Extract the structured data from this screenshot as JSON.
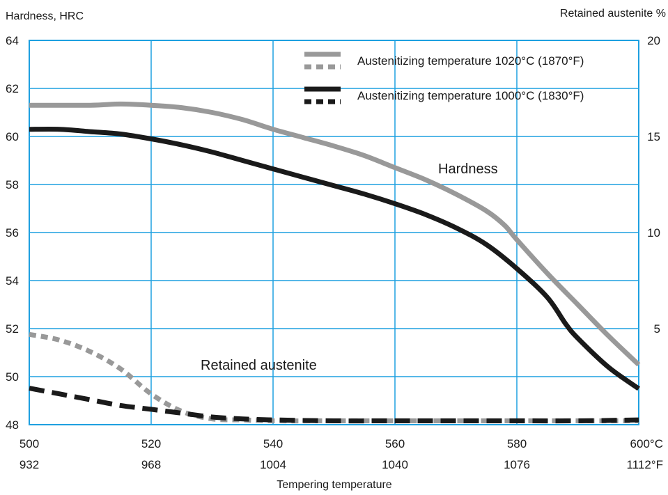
{
  "chart_data": {
    "type": "line",
    "y_left_label": "Hardness, HRC",
    "y_right_label": "Retained austenite %",
    "x_label": "Tempering temperature",
    "x_range": [
      500,
      600
    ],
    "y_left_range": [
      48,
      64
    ],
    "y_right_range": [
      0,
      20
    ],
    "x_ticks_c": [
      "500",
      "520",
      "540",
      "560",
      "580",
      "600°C"
    ],
    "x_ticks_f": [
      "932",
      "968",
      "1004",
      "1040",
      "1076",
      "1112°F"
    ],
    "x_tick_values": [
      500,
      520,
      540,
      560,
      580,
      600
    ],
    "y_left_ticks": [
      "48",
      "50",
      "52",
      "54",
      "56",
      "58",
      "60",
      "62",
      "64"
    ],
    "y_left_tick_values": [
      48,
      50,
      52,
      54,
      56,
      58,
      60,
      62,
      64
    ],
    "y_right_ticks": [
      "5",
      "10",
      "15",
      "20"
    ],
    "y_right_tick_values": [
      5,
      10,
      15,
      20
    ],
    "grid": true,
    "legend_position": "top-right",
    "legend": [
      {
        "label": "Austenitizing temperature 1020°C (1870°F)",
        "color": "#999999"
      },
      {
        "label": "Austenitizing temperature 1000°C (1830°F)",
        "color": "#1a1a1a"
      }
    ],
    "annotations": {
      "hardness": "Hardness",
      "retained": "Retained austenite"
    },
    "series": [
      {
        "name": "Hardness 1020°C",
        "quantity": "hardness",
        "axis": "left",
        "style": "solid",
        "color": "#999999",
        "points": [
          [
            500,
            61.3
          ],
          [
            510,
            61.3
          ],
          [
            515,
            61.35
          ],
          [
            520,
            61.3
          ],
          [
            525,
            61.2
          ],
          [
            530,
            61.0
          ],
          [
            535,
            60.7
          ],
          [
            540,
            60.3
          ],
          [
            545,
            59.95
          ],
          [
            550,
            59.6
          ],
          [
            555,
            59.2
          ],
          [
            560,
            58.7
          ],
          [
            565,
            58.2
          ],
          [
            570,
            57.6
          ],
          [
            575,
            56.9
          ],
          [
            578,
            56.3
          ],
          [
            580,
            55.7
          ],
          [
            585,
            54.3
          ],
          [
            590,
            53.0
          ],
          [
            595,
            51.7
          ],
          [
            600,
            50.5
          ]
        ]
      },
      {
        "name": "Hardness 1000°C",
        "quantity": "hardness",
        "axis": "left",
        "style": "solid",
        "color": "#1a1a1a",
        "points": [
          [
            500,
            60.3
          ],
          [
            505,
            60.3
          ],
          [
            510,
            60.2
          ],
          [
            515,
            60.1
          ],
          [
            520,
            59.9
          ],
          [
            525,
            59.65
          ],
          [
            530,
            59.35
          ],
          [
            535,
            59.0
          ],
          [
            540,
            58.65
          ],
          [
            545,
            58.3
          ],
          [
            550,
            57.95
          ],
          [
            555,
            57.6
          ],
          [
            560,
            57.2
          ],
          [
            565,
            56.75
          ],
          [
            570,
            56.2
          ],
          [
            575,
            55.5
          ],
          [
            580,
            54.5
          ],
          [
            585,
            53.3
          ],
          [
            588,
            52.2
          ],
          [
            590,
            51.6
          ],
          [
            595,
            50.4
          ],
          [
            600,
            49.5
          ]
        ]
      },
      {
        "name": "Retained austenite 1020°C",
        "quantity": "retained austenite",
        "axis": "right",
        "style": "dotted",
        "color": "#999999",
        "points": [
          [
            500,
            4.7
          ],
          [
            505,
            4.4
          ],
          [
            510,
            3.8
          ],
          [
            515,
            2.9
          ],
          [
            520,
            1.6
          ],
          [
            525,
            0.7
          ],
          [
            530,
            0.3
          ],
          [
            535,
            0.25
          ],
          [
            540,
            0.2
          ],
          [
            550,
            0.2
          ],
          [
            560,
            0.2
          ],
          [
            570,
            0.2
          ],
          [
            580,
            0.2
          ],
          [
            590,
            0.2
          ],
          [
            600,
            0.2
          ]
        ]
      },
      {
        "name": "Retained austenite 1000°C",
        "quantity": "retained austenite",
        "axis": "right",
        "style": "dashed",
        "color": "#1a1a1a",
        "points": [
          [
            500,
            1.9
          ],
          [
            505,
            1.6
          ],
          [
            510,
            1.3
          ],
          [
            515,
            1.0
          ],
          [
            520,
            0.8
          ],
          [
            525,
            0.6
          ],
          [
            530,
            0.4
          ],
          [
            535,
            0.3
          ],
          [
            540,
            0.25
          ],
          [
            550,
            0.2
          ],
          [
            560,
            0.2
          ],
          [
            570,
            0.2
          ],
          [
            580,
            0.2
          ],
          [
            590,
            0.2
          ],
          [
            600,
            0.25
          ]
        ]
      }
    ]
  }
}
